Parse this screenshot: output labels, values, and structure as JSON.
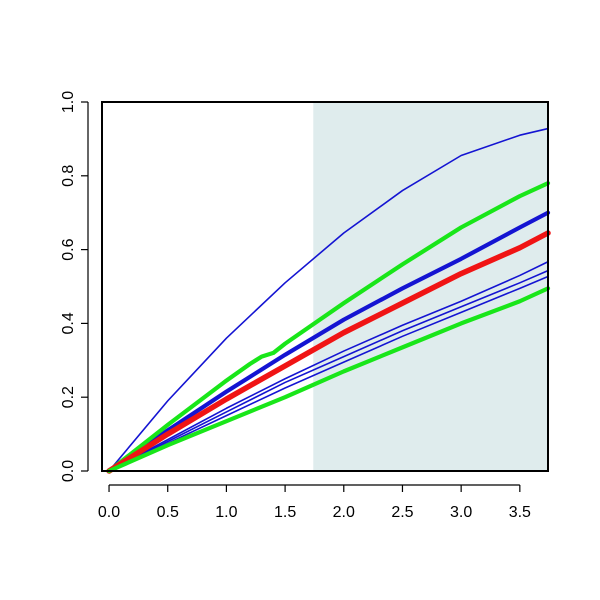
{
  "chart_data": {
    "type": "line",
    "title": "",
    "xlabel": "",
    "ylabel": "",
    "xlim": [
      -0.06,
      3.74
    ],
    "ylim": [
      0.0,
      1.0
    ],
    "x_ticks": [
      "0.0",
      "0.5",
      "1.0",
      "1.5",
      "2.0",
      "2.5",
      "3.0",
      "3.5"
    ],
    "y_ticks": [
      "0.0",
      "0.2",
      "0.4",
      "0.6",
      "0.8",
      "1.0"
    ],
    "shaded_region": {
      "x_start": 1.74,
      "x_end": 3.74,
      "color": "#dfeced"
    },
    "colors": {
      "blue": "#1414d2",
      "green": "#19e619",
      "red": "#f01414",
      "axis": "#000000"
    },
    "series": [
      {
        "color": "#1414d2",
        "width": "thin",
        "points": [
          [
            0,
            0
          ],
          [
            0.5,
            0.19
          ],
          [
            1.0,
            0.36
          ],
          [
            1.5,
            0.51
          ],
          [
            2.0,
            0.645
          ],
          [
            2.5,
            0.76
          ],
          [
            3.0,
            0.855
          ],
          [
            3.5,
            0.91
          ],
          [
            3.74,
            0.928
          ]
        ]
      },
      {
        "color": "#1414d2",
        "width": "thick",
        "points": [
          [
            0,
            0
          ],
          [
            0.5,
            0.11
          ],
          [
            1.0,
            0.215
          ],
          [
            1.5,
            0.315
          ],
          [
            2.0,
            0.41
          ],
          [
            2.5,
            0.495
          ],
          [
            3.0,
            0.575
          ],
          [
            3.5,
            0.66
          ],
          [
            3.74,
            0.7
          ]
        ]
      },
      {
        "color": "#1414d2",
        "width": "thin",
        "points": [
          [
            0,
            0
          ],
          [
            0.5,
            0.085
          ],
          [
            1.0,
            0.17
          ],
          [
            1.5,
            0.25
          ],
          [
            2.0,
            0.325
          ],
          [
            2.5,
            0.395
          ],
          [
            3.0,
            0.46
          ],
          [
            3.5,
            0.53
          ],
          [
            3.74,
            0.567
          ]
        ]
      },
      {
        "color": "#1414d2",
        "width": "thin",
        "points": [
          [
            0,
            0
          ],
          [
            0.5,
            0.08
          ],
          [
            1.0,
            0.16
          ],
          [
            1.5,
            0.24
          ],
          [
            2.0,
            0.31
          ],
          [
            2.5,
            0.38
          ],
          [
            3.0,
            0.445
          ],
          [
            3.5,
            0.51
          ],
          [
            3.74,
            0.543
          ]
        ]
      },
      {
        "color": "#1414d2",
        "width": "thin",
        "points": [
          [
            0,
            0
          ],
          [
            0.5,
            0.075
          ],
          [
            1.0,
            0.15
          ],
          [
            1.5,
            0.225
          ],
          [
            2.0,
            0.295
          ],
          [
            2.5,
            0.365
          ],
          [
            3.0,
            0.43
          ],
          [
            3.5,
            0.495
          ],
          [
            3.74,
            0.527
          ]
        ]
      },
      {
        "color": "#19e619",
        "width": "thick",
        "points": [
          [
            0,
            0
          ],
          [
            0.5,
            0.125
          ],
          [
            1.0,
            0.245
          ],
          [
            1.2,
            0.29
          ],
          [
            1.25,
            0.3
          ],
          [
            1.3,
            0.31
          ],
          [
            1.4,
            0.32
          ],
          [
            1.5,
            0.345
          ],
          [
            2.0,
            0.455
          ],
          [
            2.5,
            0.56
          ],
          [
            3.0,
            0.66
          ],
          [
            3.5,
            0.745
          ],
          [
            3.74,
            0.78
          ]
        ]
      },
      {
        "color": "#f01414",
        "width": "thicker",
        "points": [
          [
            0,
            0
          ],
          [
            0.5,
            0.1
          ],
          [
            1.0,
            0.195
          ],
          [
            1.5,
            0.285
          ],
          [
            2.0,
            0.375
          ],
          [
            2.5,
            0.455
          ],
          [
            3.0,
            0.535
          ],
          [
            3.5,
            0.605
          ],
          [
            3.74,
            0.645
          ]
        ]
      },
      {
        "color": "#19e619",
        "width": "thick",
        "points": [
          [
            0,
            0
          ],
          [
            0.5,
            0.07
          ],
          [
            1.0,
            0.135
          ],
          [
            1.5,
            0.2
          ],
          [
            2.0,
            0.27
          ],
          [
            2.5,
            0.335
          ],
          [
            3.0,
            0.4
          ],
          [
            3.5,
            0.46
          ],
          [
            3.74,
            0.495
          ]
        ]
      }
    ]
  }
}
